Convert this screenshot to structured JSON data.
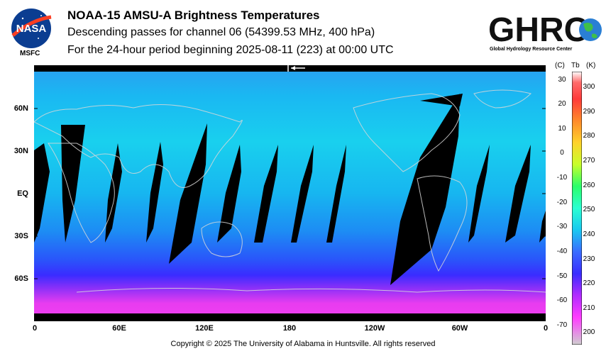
{
  "header": {
    "title": "NOAA-15 AMSU-A Brightness Temperatures",
    "subtitle": "Descending passes for channel 06 (54399.53 MHz, 400 hPa)",
    "period": "For the 24-hour period beginning 2025-08-11 (223) at 00:00 UTC"
  },
  "logos": {
    "nasa_text": "NASA",
    "nasa_label": "MSFC",
    "ghrc_text": "GHRC",
    "ghrc_sub": "Global Hydrology Resource Center"
  },
  "map": {
    "lat_labels": [
      "60N",
      "30N",
      "EQ",
      "30S",
      "60S"
    ],
    "lon_labels": [
      "0",
      "60E",
      "120E",
      "180",
      "120W",
      "60W",
      "0"
    ],
    "colors": {
      "background_mid": "#19c8f0",
      "background_south": "#3a2cff",
      "polar_south": "#e83cf0",
      "swath_gap": "#000000",
      "coastline": "#d8d8d8"
    }
  },
  "colorbar": {
    "header_c": "(C)",
    "header_tb": "Tb",
    "header_k": "(K)",
    "celsius_ticks": [
      "30",
      "20",
      "10",
      "0",
      "-10",
      "-20",
      "-30",
      "-40",
      "-50",
      "-60",
      "-70"
    ],
    "kelvin_ticks": [
      "300",
      "290",
      "280",
      "270",
      "260",
      "250",
      "240",
      "230",
      "220",
      "210",
      "200"
    ],
    "colors": [
      "#ff3a3a",
      "#ff8a2a",
      "#ffd22a",
      "#c8ff2a",
      "#2aff6a",
      "#2affd2",
      "#19c8f0",
      "#3a6cff",
      "#3a2cff",
      "#b22cff",
      "#ff3cff",
      "#cfcfcf"
    ]
  },
  "footer": {
    "copyright": "Copyright © 2025 The University of Alabama in Huntsville.  All rights reserved"
  }
}
